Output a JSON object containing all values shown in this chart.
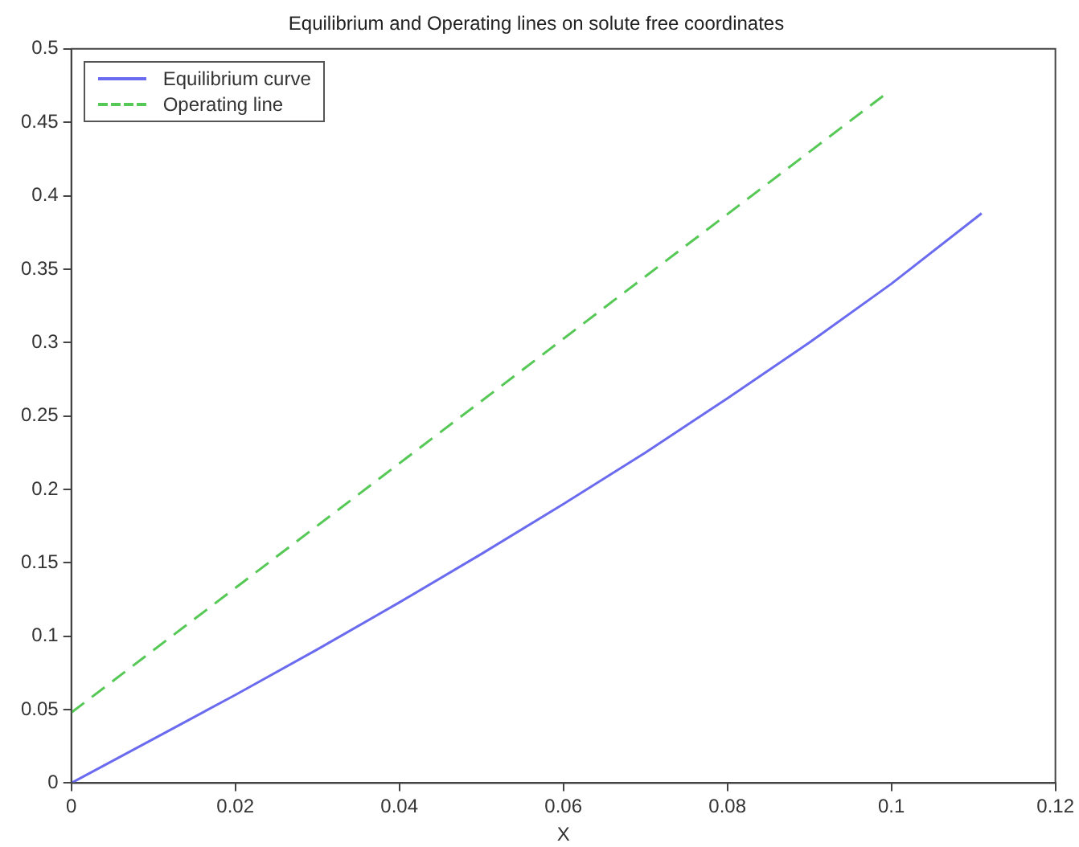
{
  "chart_data": {
    "type": "line",
    "title": "Equilibrium and Operating lines on solute free coordinates",
    "xlabel": "X",
    "series": [
      {
        "name": "Equilibrium curve",
        "color": "#6b6bf0",
        "line_style": "solid",
        "x": [
          0,
          0.01,
          0.02,
          0.03,
          0.04,
          0.05,
          0.06,
          0.07,
          0.08,
          0.09,
          0.1,
          0.111
        ],
        "values": [
          0,
          0.03,
          0.06,
          0.091,
          0.123,
          0.156,
          0.19,
          0.225,
          0.262,
          0.3,
          0.34,
          0.388
        ]
      },
      {
        "name": "Operating line",
        "color": "#55c855",
        "line_style": "dashed",
        "x": [
          0,
          0.099
        ],
        "values": [
          0.048,
          0.468
        ]
      }
    ],
    "xlim": [
      0,
      0.12
    ],
    "xticks": [
      0,
      0.02,
      0.04,
      0.06,
      0.08,
      0.1,
      0.12
    ],
    "ylim": [
      0,
      0.5
    ],
    "yticks": [
      0,
      0.05,
      0.1,
      0.15,
      0.2,
      0.25,
      0.3,
      0.35,
      0.4,
      0.45,
      0.5
    ],
    "grid": false,
    "legend": "top left",
    "marker": "none"
  }
}
